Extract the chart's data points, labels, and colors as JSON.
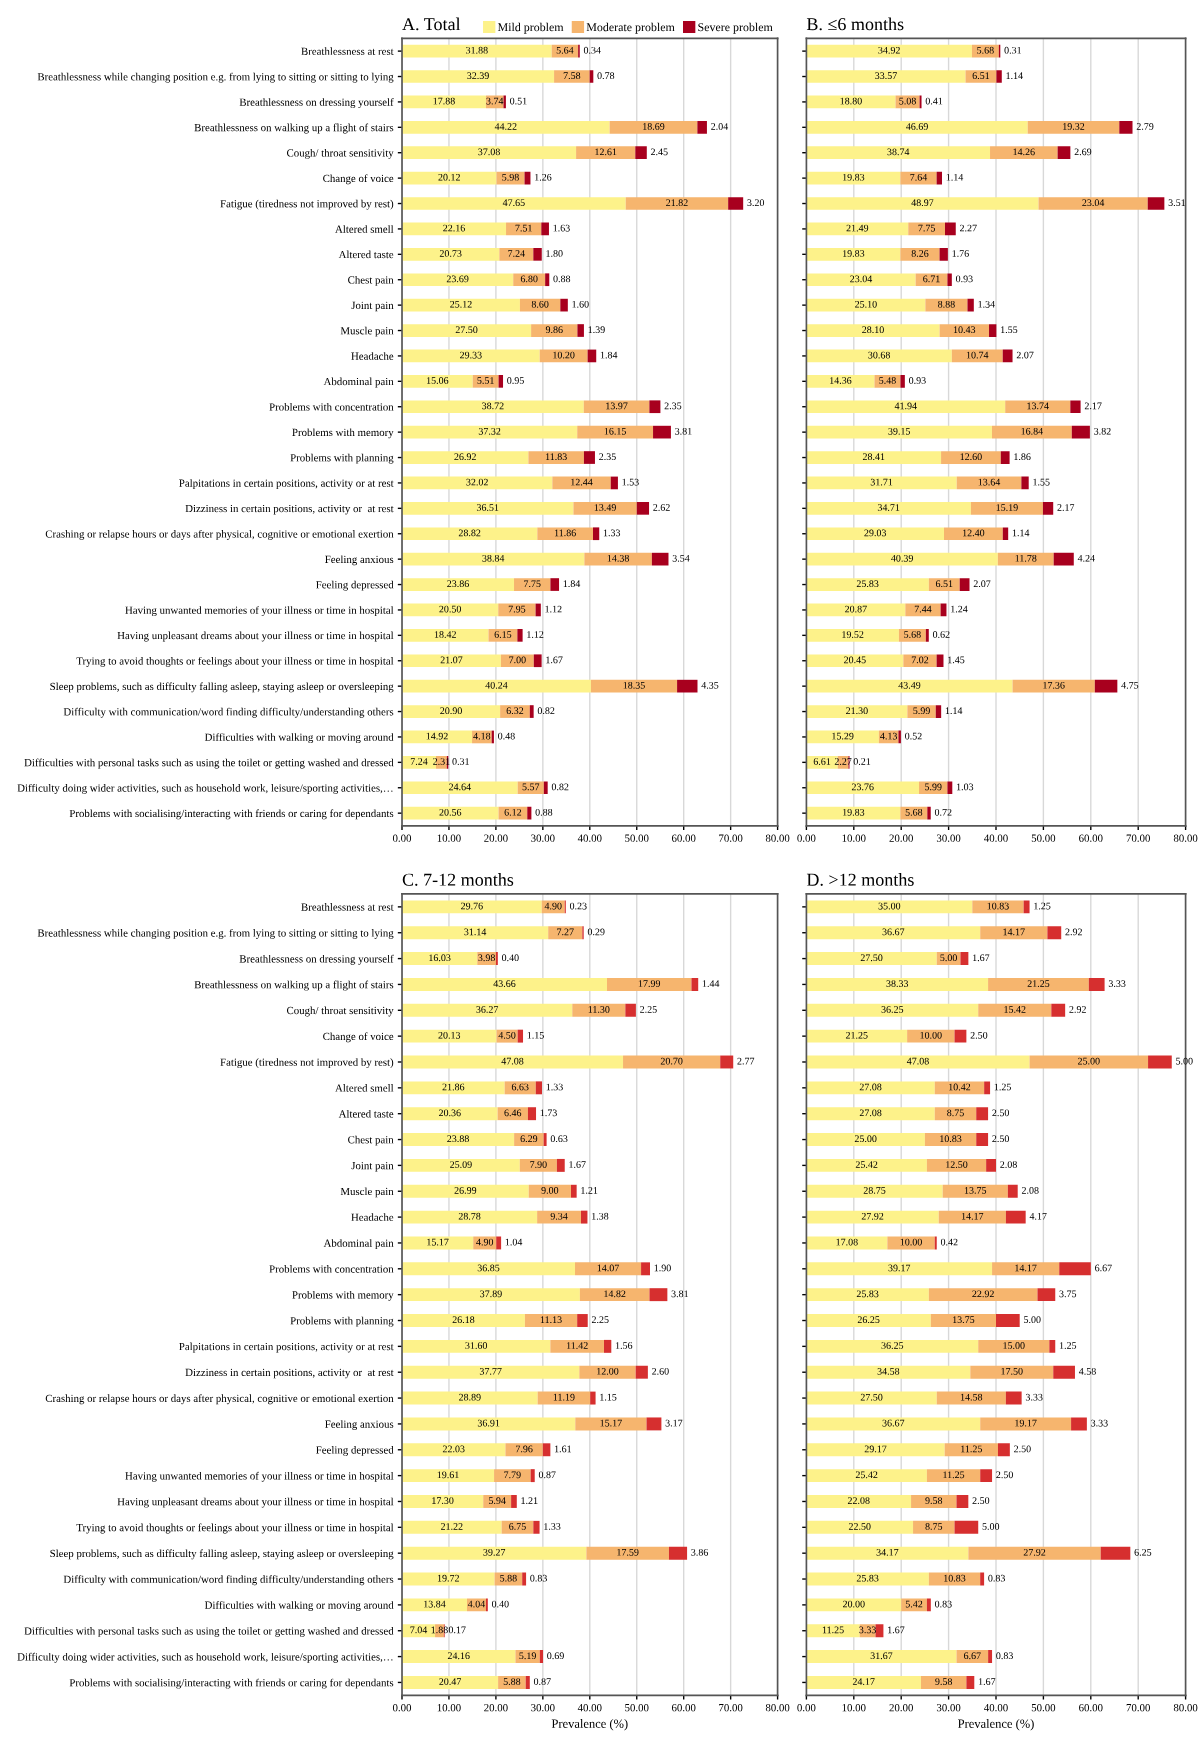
{
  "chart_data": [
    {
      "type": "bar",
      "orientation": "horizontal",
      "stacked": true,
      "title": "A. Total",
      "legend": "top right",
      "grid": "x",
      "categories": [
        "Breathlessness at rest",
        "Breathlessness while changing position e.g. from lying to sitting or sitting to lying",
        "Breathlessness on dressing yourself",
        "Breathlessness on walking up a flight of stairs",
        "Cough/ throat sensitivity",
        "Change of voice",
        "Fatigue (tiredness not improved by rest)",
        "Altered smell",
        "Altered taste",
        "Chest pain",
        "Joint pain",
        "Muscle pain",
        "Headache",
        "Abdominal pain",
        "Problems with concentration",
        "Problems with memory",
        "Problems with planning",
        "Palpitations in certain positions, activity or at rest",
        "Dizziness in certain positions, activity or  at rest",
        "Crashing or relapse hours or days after physical, cognitive or emotional exertion",
        "Feeling anxious",
        "Feeling depressed",
        "Having unwanted memories of your illness or time in hospital",
        "Having unpleasant dreams about your illness or time in hospital",
        "Trying to avoid thoughts or feelings about your illness or time in hospital",
        "Sleep problems, such as difficulty falling asleep, staying asleep or oversleeping",
        "Difficulty with communication/word finding difficulty/understanding others",
        "Difficulties with walking or moving around",
        "Difficulties with personal tasks such as using the toilet or getting washed and dressed",
        "Difficulty doing wider activities, such as household work, leisure/sporting activities,…",
        "Problems with socialising/interacting with friends or caring for dependants"
      ],
      "xlim": [
        0,
        80
      ],
      "xticks": [
        {
          "value": 0,
          "label": "0.00"
        },
        {
          "value": 10,
          "label": "10.00"
        },
        {
          "value": 20,
          "label": "20.00"
        },
        {
          "value": 30,
          "label": "30.00"
        },
        {
          "value": 40,
          "label": "40.00"
        },
        {
          "value": 50,
          "label": "50.00"
        },
        {
          "value": 60,
          "label": "60.00"
        },
        {
          "value": 70,
          "label": "70.00"
        },
        {
          "value": 80,
          "label": "80.00"
        }
      ],
      "series": [
        {
          "name": "Mild problem",
          "color": "#fdf28a",
          "values": [
            31.88,
            32.39,
            17.88,
            44.22,
            37.08,
            20.12,
            47.65,
            22.16,
            20.73,
            23.69,
            25.12,
            27.5,
            29.33,
            15.06,
            38.72,
            37.32,
            26.92,
            32.02,
            36.51,
            28.82,
            38.84,
            23.86,
            20.5,
            18.42,
            21.07,
            40.24,
            20.9,
            14.92,
            7.24,
            24.64,
            20.56
          ],
          "value_labels": [
            "31.88",
            "32.39",
            "17.88",
            "44.22",
            "37.08",
            "20.12",
            "47.65",
            "22.16",
            "20.73",
            "23.69",
            "25.12",
            "27.50",
            "29.33",
            "15.06",
            "38.72",
            "37.32",
            "26.92",
            "32.02",
            "36.51",
            "28.82",
            "38.84",
            "23.86",
            "20.50",
            "18.42",
            "21.07",
            "40.24",
            "20.90",
            "14.92",
            "7.24",
            "24.64",
            "20.56"
          ]
        },
        {
          "name": "Moderate problem",
          "color": "#f6b56e",
          "values": [
            5.64,
            7.58,
            3.74,
            18.69,
            12.61,
            5.98,
            21.82,
            7.51,
            7.24,
            6.8,
            8.6,
            9.86,
            10.2,
            5.51,
            13.97,
            16.15,
            11.83,
            12.44,
            13.49,
            11.86,
            14.38,
            7.75,
            7.95,
            6.15,
            7.0,
            18.35,
            6.32,
            4.18,
            2.31,
            5.57,
            6.12
          ],
          "value_labels": [
            "5.64",
            "7.58",
            "3.74",
            "18.69",
            "12.61",
            "5.98",
            "21.82",
            "7.51",
            "7.24",
            "6.80",
            "8.60",
            "9.86",
            "10.20",
            "5.51",
            "13.97",
            "16.15",
            "11.83",
            "12.44",
            "13.49",
            "11.86",
            "14.38",
            "7.75",
            "7.95",
            "6.15",
            "7.00",
            "18.35",
            "6.32",
            "4.18",
            "2.31",
            "5.57",
            "6.12"
          ]
        },
        {
          "name": "Severe problem",
          "color": "#a8001e",
          "values": [
            0.34,
            0.78,
            0.51,
            2.04,
            2.45,
            1.26,
            3.2,
            1.63,
            1.8,
            0.88,
            1.6,
            1.39,
            1.84,
            0.95,
            2.35,
            3.81,
            2.35,
            1.53,
            2.62,
            1.33,
            3.54,
            1.84,
            1.12,
            1.12,
            1.67,
            4.35,
            0.82,
            0.48,
            0.31,
            0.82,
            0.88
          ],
          "value_labels": [
            "0.34",
            "0.78",
            "0.51",
            "2.04",
            "2.45",
            "1.26",
            "3.20",
            "1.63",
            "1.80",
            "0.88",
            "1.60",
            "1.39",
            "1.84",
            "0.95",
            "2.35",
            "3.81",
            "2.35",
            "1.53",
            "2.62",
            "1.33",
            "3.54",
            "1.84",
            "1.12",
            "1.12",
            "1.67",
            "4.35",
            "0.82",
            "0.48",
            "0.31",
            "0.82",
            "0.88"
          ]
        }
      ]
    },
    {
      "type": "bar",
      "orientation": "horizontal",
      "stacked": true,
      "title": "B. ≤6 months",
      "grid": "x",
      "categories": [
        null,
        null,
        null,
        null,
        null,
        null,
        null,
        null,
        null,
        null,
        null,
        null,
        null,
        null,
        null,
        null,
        null,
        null,
        null,
        null,
        null,
        null,
        null,
        null,
        null,
        null,
        null,
        null,
        null,
        null,
        null
      ],
      "xlim": [
        0,
        80
      ],
      "xticks": [
        {
          "value": 0,
          "label": "0.00"
        },
        {
          "value": 10,
          "label": "10.00"
        },
        {
          "value": 20,
          "label": "20.00"
        },
        {
          "value": 30,
          "label": "30.00"
        },
        {
          "value": 40,
          "label": "40.00"
        },
        {
          "value": 50,
          "label": "50.00"
        },
        {
          "value": 60,
          "label": "60.00"
        },
        {
          "value": 70,
          "label": "70.00"
        },
        {
          "value": 80,
          "label": "80.00"
        }
      ],
      "series": [
        {
          "color": "#fdf28a",
          "values": [
            34.92,
            33.57,
            18.8,
            46.69,
            38.74,
            19.83,
            48.97,
            21.49,
            19.83,
            23.04,
            25.1,
            28.1,
            30.68,
            14.36,
            41.94,
            39.15,
            28.41,
            31.71,
            34.71,
            29.03,
            40.39,
            25.83,
            20.87,
            19.52,
            20.45,
            43.49,
            21.3,
            15.29,
            6.61,
            23.76,
            19.83
          ],
          "value_labels": [
            "34.92",
            "33.57",
            "18.80",
            "46.69",
            "38.74",
            "19.83",
            "48.97",
            "21.49",
            "19.83",
            "23.04",
            "25.10",
            "28.10",
            "30.68",
            "14.36",
            "41.94",
            "39.15",
            "28.41",
            "31.71",
            "34.71",
            "29.03",
            "40.39",
            "25.83",
            "20.87",
            "19.52",
            "20.45",
            "43.49",
            "21.30",
            "15.29",
            "6.61",
            "23.76",
            "19.83"
          ]
        },
        {
          "color": "#f6b56e",
          "values": [
            5.68,
            6.51,
            5.08,
            19.32,
            14.26,
            7.64,
            23.04,
            7.75,
            8.26,
            6.71,
            8.88,
            10.43,
            10.74,
            5.48,
            13.74,
            16.84,
            12.6,
            13.64,
            15.19,
            12.4,
            11.78,
            6.51,
            7.44,
            5.68,
            7.02,
            17.36,
            5.99,
            4.13,
            2.27,
            5.99,
            5.68
          ],
          "value_labels": [
            "5.68",
            "6.51",
            "5.08",
            "19.32",
            "14.26",
            "7.64",
            "23.04",
            "7.75",
            "8.26",
            "6.71",
            "8.88",
            "10.43",
            "10.74",
            "5.48",
            "13.74",
            "16.84",
            "12.60",
            "13.64",
            "15.19",
            "12.40",
            "11.78",
            "6.51",
            "7.44",
            "5.68",
            "7.02",
            "17.36",
            "5.99",
            "4.13",
            "2.27",
            "5.99",
            "5.68"
          ]
        },
        {
          "color": "#a8001e",
          "values": [
            0.31,
            1.14,
            0.41,
            2.79,
            2.69,
            1.14,
            3.51,
            2.27,
            1.76,
            0.93,
            1.34,
            1.55,
            2.07,
            0.93,
            2.17,
            3.82,
            1.86,
            1.55,
            2.17,
            1.14,
            4.24,
            2.07,
            1.24,
            0.62,
            1.45,
            4.75,
            1.14,
            0.52,
            0.21,
            1.03,
            0.72
          ],
          "value_labels": [
            "0.31",
            "1.14",
            "0.41",
            "2.79",
            "2.69",
            "1.14",
            "3.51",
            "2.27",
            "1.76",
            "0.93",
            "1.34",
            "1.55",
            "2.07",
            "0.93",
            "2.17",
            "3.82",
            "1.86",
            "1.55",
            "2.17",
            "1.14",
            "4.24",
            "2.07",
            "1.24",
            "0.62",
            "1.45",
            "4.75",
            "1.14",
            "0.52",
            "0.21",
            "1.03",
            "0.72"
          ]
        }
      ]
    },
    {
      "type": "bar",
      "orientation": "horizontal",
      "stacked": true,
      "title": "C. 7-12 months",
      "xlabel": "Prevalence (%)",
      "grid": "x",
      "categories": [
        "Breathlessness at rest",
        "Breathlessness while changing position e.g. from lying to sitting or sitting to lying",
        "Breathlessness on dressing yourself",
        "Breathlessness on walking up a flight of stairs",
        "Cough/ throat sensitivity",
        "Change of voice",
        "Fatigue (tiredness not improved by rest)",
        "Altered smell",
        "Altered taste",
        "Chest pain",
        "Joint pain",
        "Muscle pain",
        "Headache",
        "Abdominal pain",
        "Problems with concentration",
        "Problems with memory",
        "Problems with planning",
        "Palpitations in certain positions, activity or at rest",
        "Dizziness in certain positions, activity or  at rest",
        "Crashing or relapse hours or days after physical, cognitive or emotional exertion",
        "Feeling anxious",
        "Feeling depressed",
        "Having unwanted memories of your illness or time in hospital",
        "Having unpleasant dreams about your illness or time in hospital",
        "Trying to avoid thoughts or feelings about your illness or time in hospital",
        "Sleep problems, such as difficulty falling asleep, staying asleep or oversleeping",
        "Difficulty with communication/word finding difficulty/understanding others",
        "Difficulties with walking or moving around",
        "Difficulties with personal tasks such as using the toilet or getting washed and dressed",
        "Difficulty doing wider activities, such as household work, leisure/sporting activities,…",
        "Problems with socialising/interacting with friends or caring for dependants"
      ],
      "xlim": [
        0,
        80
      ],
      "xticks": [
        {
          "value": 0,
          "label": "0.00"
        },
        {
          "value": 10,
          "label": "10.00"
        },
        {
          "value": 20,
          "label": "20.00"
        },
        {
          "value": 30,
          "label": "30.00"
        },
        {
          "value": 40,
          "label": "40.00"
        },
        {
          "value": 50,
          "label": "50.00"
        },
        {
          "value": 60,
          "label": "60.00"
        },
        {
          "value": 70,
          "label": "70.00"
        },
        {
          "value": 80,
          "label": "80.00"
        }
      ],
      "series": [
        {
          "color": "#fdf28a",
          "values": [
            29.76,
            31.14,
            16.03,
            43.66,
            36.27,
            20.13,
            47.08,
            21.86,
            20.36,
            23.88,
            25.09,
            26.99,
            28.78,
            15.17,
            36.85,
            37.89,
            26.18,
            31.6,
            37.77,
            28.89,
            36.91,
            22.03,
            19.61,
            17.3,
            21.22,
            39.27,
            19.72,
            13.84,
            7.04,
            24.16,
            20.47
          ],
          "value_labels": [
            "29.76",
            "31.14",
            "16.03",
            "43.66",
            "36.27",
            "20.13",
            "47.08",
            "21.86",
            "20.36",
            "23.88",
            "25.09",
            "26.99",
            "28.78",
            "15.17",
            "36.85",
            "37.89",
            "26.18",
            "31.60",
            "37.77",
            "28.89",
            "36.91",
            "22.03",
            "19.61",
            "17.30",
            "21.22",
            "39.27",
            "19.72",
            "13.84",
            "7.04",
            "24.16",
            "20.47"
          ]
        },
        {
          "color": "#f6b56e",
          "values": [
            4.9,
            7.27,
            3.98,
            17.99,
            11.3,
            4.5,
            20.7,
            6.63,
            6.46,
            6.29,
            7.9,
            9.0,
            9.34,
            4.9,
            14.07,
            14.82,
            11.13,
            11.42,
            12.0,
            11.19,
            15.17,
            7.96,
            7.79,
            5.94,
            6.75,
            17.59,
            5.88,
            4.04,
            1.88,
            5.19,
            5.88
          ],
          "value_labels": [
            "4.90",
            "7.27",
            "3.98",
            "17.99",
            "11.30",
            "4.50",
            "20.70",
            "6.63",
            "6.46",
            "6.29",
            "7.90",
            "9.00",
            "9.34",
            "4.90",
            "14.07",
            "14.82",
            "11.13",
            "11.42",
            "12.00",
            "11.19",
            "15.17",
            "7.96",
            "7.79",
            "5.94",
            "6.75",
            "17.59",
            "5.88",
            "4.04",
            "1.88",
            "5.19",
            "5.88"
          ]
        },
        {
          "color": "#d62f2f",
          "values": [
            0.23,
            0.29,
            0.4,
            1.44,
            2.25,
            1.15,
            2.77,
            1.33,
            1.73,
            0.63,
            1.67,
            1.21,
            1.38,
            1.04,
            1.9,
            3.81,
            2.25,
            1.56,
            2.6,
            1.15,
            3.17,
            1.61,
            0.87,
            1.21,
            1.33,
            3.86,
            0.83,
            0.4,
            0.17,
            0.69,
            0.87
          ],
          "value_labels": [
            "0.23",
            "0.29",
            "0.40",
            "1.44",
            "2.25",
            "1.15",
            "2.77",
            "1.33",
            "1.73",
            "0.63",
            "1.67",
            "1.21",
            "1.38",
            "1.04",
            "1.90",
            "3.81",
            "2.25",
            "1.56",
            "2.60",
            "1.15",
            "3.17",
            "1.61",
            "0.87",
            "1.21",
            "1.33",
            "3.86",
            "0.83",
            "0.40",
            "0.17",
            "0.69",
            "0.87"
          ]
        }
      ]
    },
    {
      "type": "bar",
      "orientation": "horizontal",
      "stacked": true,
      "title": "D. >12 months",
      "xlabel": "Prevalence (%)",
      "grid": "x",
      "categories": [
        null,
        null,
        null,
        null,
        null,
        null,
        null,
        null,
        null,
        null,
        null,
        null,
        null,
        null,
        null,
        null,
        null,
        null,
        null,
        null,
        null,
        null,
        null,
        null,
        null,
        null,
        null,
        null,
        null,
        null,
        null
      ],
      "xlim": [
        0,
        80
      ],
      "xticks": [
        {
          "value": 0,
          "label": "0.00"
        },
        {
          "value": 10,
          "label": "10.00"
        },
        {
          "value": 20,
          "label": "20.00"
        },
        {
          "value": 30,
          "label": "30.00"
        },
        {
          "value": 40,
          "label": "40.00"
        },
        {
          "value": 50,
          "label": "50.00"
        },
        {
          "value": 60,
          "label": "60.00"
        },
        {
          "value": 70,
          "label": "70.00"
        },
        {
          "value": 80,
          "label": "80.00"
        }
      ],
      "series": [
        {
          "color": "#fdf28a",
          "values": [
            35.0,
            36.67,
            27.5,
            38.33,
            36.25,
            21.25,
            47.08,
            27.08,
            27.08,
            25.0,
            25.42,
            28.75,
            27.92,
            17.08,
            39.17,
            25.83,
            26.25,
            36.25,
            34.58,
            27.5,
            36.67,
            29.17,
            25.42,
            22.08,
            22.5,
            34.17,
            25.83,
            20.0,
            11.25,
            31.67,
            24.17
          ],
          "value_labels": [
            "35.00",
            "36.67",
            "27.50",
            "38.33",
            "36.25",
            "21.25",
            "47.08",
            "27.08",
            "27.08",
            "25.00",
            "25.42",
            "28.75",
            "27.92",
            "17.08",
            "39.17",
            "25.83",
            "26.25",
            "36.25",
            "34.58",
            "27.50",
            "36.67",
            "29.17",
            "25.42",
            "22.08",
            "22.50",
            "34.17",
            "25.83",
            "20.00",
            "11.25",
            "31.67",
            "24.17"
          ]
        },
        {
          "color": "#f6b56e",
          "values": [
            10.83,
            14.17,
            5.0,
            21.25,
            15.42,
            10.0,
            25.0,
            10.42,
            8.75,
            10.83,
            12.5,
            13.75,
            14.17,
            10.0,
            14.17,
            22.92,
            13.75,
            15.0,
            17.5,
            14.58,
            19.17,
            11.25,
            11.25,
            9.58,
            8.75,
            27.92,
            10.83,
            5.42,
            3.33,
            6.67,
            9.58
          ],
          "value_labels": [
            "10.83",
            "14.17",
            "5.00",
            "21.25",
            "15.42",
            "10.00",
            "25.00",
            "10.42",
            "8.75",
            "10.83",
            "12.50",
            "13.75",
            "14.17",
            "10.00",
            "14.17",
            "22.92",
            "13.75",
            "15.00",
            "17.50",
            "14.58",
            "19.17",
            "11.25",
            "11.25",
            "9.58",
            "8.75",
            "27.92",
            "10.83",
            "5.42",
            "3.33",
            "6.67",
            "9.58"
          ]
        },
        {
          "color": "#d62f2f",
          "values": [
            1.25,
            2.92,
            1.67,
            3.33,
            2.92,
            2.5,
            5.0,
            1.25,
            2.5,
            2.5,
            2.08,
            2.08,
            4.17,
            0.42,
            6.67,
            3.75,
            5.0,
            1.25,
            4.58,
            3.33,
            3.33,
            2.5,
            2.5,
            2.5,
            5.0,
            6.25,
            0.83,
            0.83,
            1.67,
            0.83,
            1.67
          ],
          "value_labels": [
            "1.25",
            "2.92",
            "1.67",
            "3.33",
            "2.92",
            "2.50",
            "5.00",
            "1.25",
            "2.50",
            "2.50",
            "2.08",
            "2.08",
            "4.17",
            "0.42",
            "6.67",
            "3.75",
            "5.00",
            "1.25",
            "4.58",
            "3.33",
            "3.33",
            "2.50",
            "2.50",
            "2.50",
            "5.00",
            "6.25",
            "0.83",
            "0.83",
            "1.67",
            "0.83",
            "1.67"
          ]
        }
      ]
    }
  ]
}
